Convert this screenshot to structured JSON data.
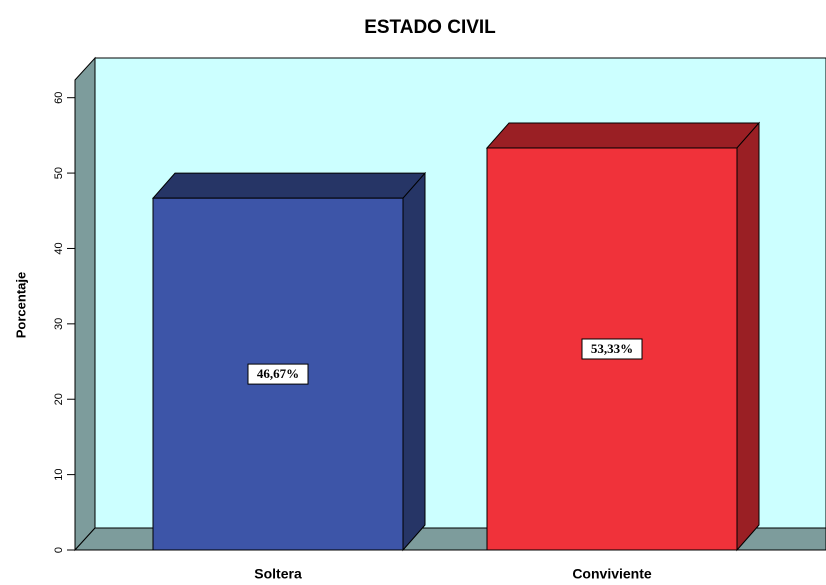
{
  "chart_data": {
    "type": "bar3d",
    "title": "ESTADO CIVIL",
    "y_label": "Porcentaje",
    "categories": [
      "Soltera",
      "Conviviente"
    ],
    "values": [
      46.67,
      53.33
    ],
    "value_labels": [
      "46,67%",
      "53,33%"
    ],
    "colors": [
      "#3d55a8",
      "#f0323a"
    ],
    "side_colors": [
      "#263566",
      "#9a1f24"
    ],
    "ylim": [
      0,
      65
    ],
    "yticks": [
      0,
      10,
      20,
      30,
      40,
      50,
      60
    ],
    "background": "#ccffff",
    "wall_color": "#7d9c9c"
  }
}
